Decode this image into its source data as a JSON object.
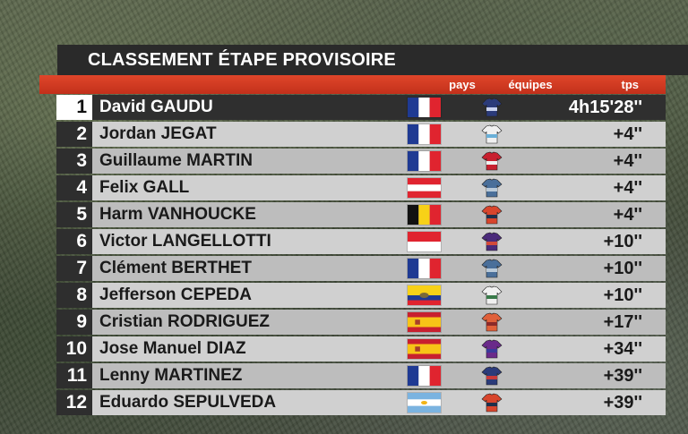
{
  "title": "CLASSEMENT ÉTAPE PROVISOIRE",
  "headers": {
    "pays": "pays",
    "equipes": "équipes",
    "tps": "tps"
  },
  "colors": {
    "accent": "#d23a22",
    "title_bg": "#2a2a2a",
    "row_light": "#d0d0d0",
    "row_mid": "#bdbdbd"
  },
  "rows": [
    {
      "rank": "1",
      "name": "David GAUDU",
      "country": "fra",
      "jersey": [
        "#2b3b7a",
        "#c9d2f0"
      ],
      "time": "4h15'28''"
    },
    {
      "rank": "2",
      "name": "Jordan JEGAT",
      "country": "fra",
      "jersey": [
        "#f0f0f0",
        "#6ab0d8"
      ],
      "time": "+4''"
    },
    {
      "rank": "3",
      "name": "Guillaume MARTIN",
      "country": "fra",
      "jersey": [
        "#c8202f",
        "#f0f0f0"
      ],
      "time": "+4''"
    },
    {
      "rank": "4",
      "name": "Felix GALL",
      "country": "aut",
      "jersey": [
        "#4a6f9a",
        "#b9c9d8"
      ],
      "time": "+4''"
    },
    {
      "rank": "5",
      "name": "Harm VANHOUCKE",
      "country": "bel",
      "jersey": [
        "#d8452c",
        "#1f2f4a"
      ],
      "time": "+4''"
    },
    {
      "rank": "6",
      "name": "Victor LANGELLOTTI",
      "country": "mco",
      "jersey": [
        "#4a2a7a",
        "#d24a3a"
      ],
      "time": "+10''"
    },
    {
      "rank": "7",
      "name": "Clément BERTHET",
      "country": "fra",
      "jersey": [
        "#4a6f9a",
        "#b9c9d8"
      ],
      "time": "+10''"
    },
    {
      "rank": "8",
      "name": "Jefferson CEPEDA",
      "country": "ecu",
      "jersey": [
        "#f0f0f0",
        "#3a7a4a"
      ],
      "time": "+10''"
    },
    {
      "rank": "9",
      "name": "Cristian RODRIGUEZ",
      "country": "esp",
      "jersey": [
        "#e0603a",
        "#8a2a2a"
      ],
      "time": "+17''"
    },
    {
      "rank": "10",
      "name": "Jose Manuel DIAZ",
      "country": "esp",
      "jersey": [
        "#6a2a8a",
        "#3a3a9a"
      ],
      "time": "+34''"
    },
    {
      "rank": "11",
      "name": "Lenny MARTINEZ",
      "country": "fra",
      "jersey": [
        "#2b3b7a",
        "#c83a3a"
      ],
      "time": "+39''"
    },
    {
      "rank": "12",
      "name": "Eduardo SEPULVEDA",
      "country": "arg",
      "jersey": [
        "#d8452c",
        "#1f2f4a"
      ],
      "time": "+39''"
    }
  ]
}
